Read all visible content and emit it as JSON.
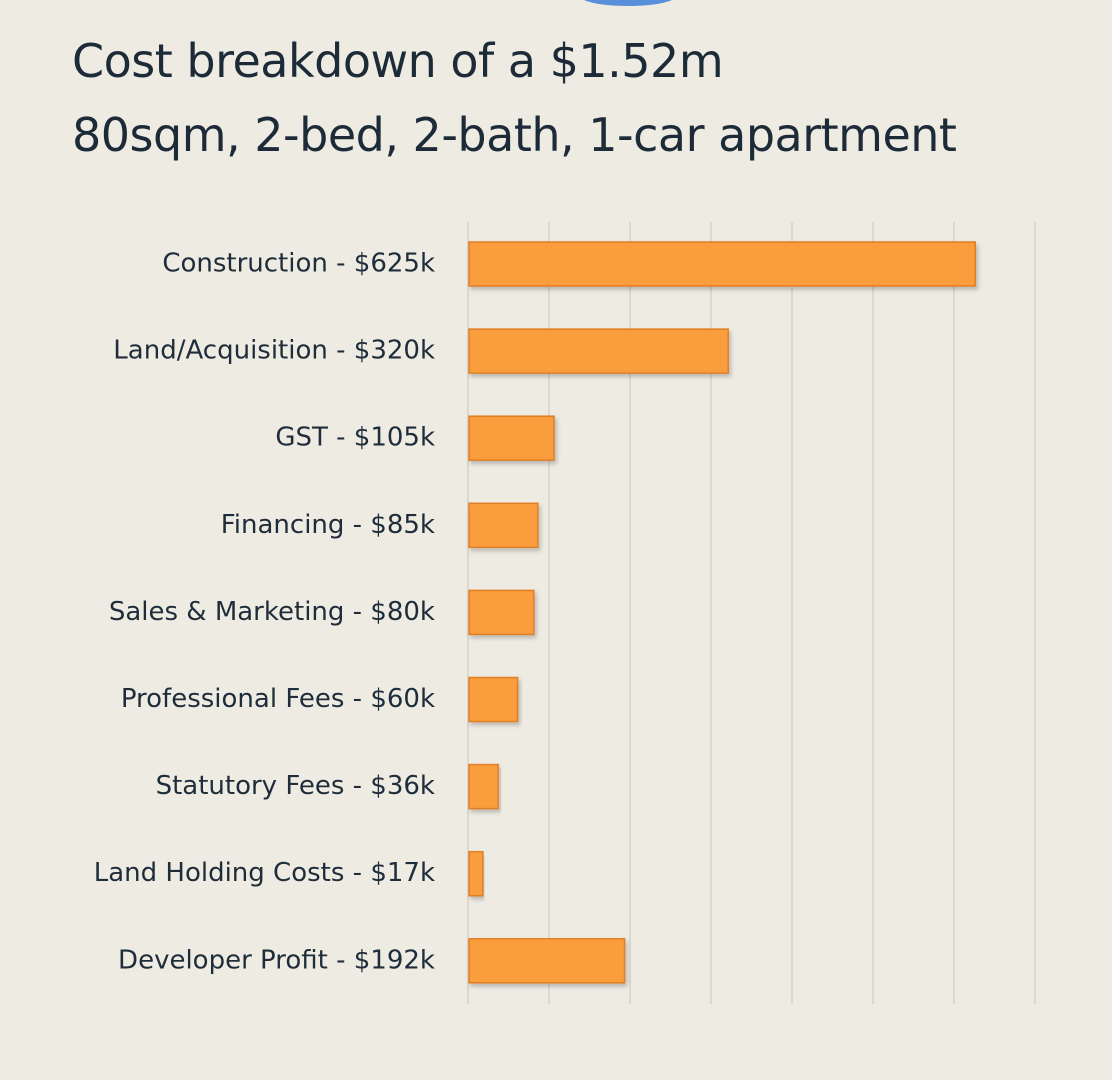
{
  "title_lines": [
    "Cost breakdown of a $1.52m",
    "80sqm, 2-bed, 2-bath, 1-car apartment"
  ],
  "colors": {
    "background": "#eeebe3",
    "bar": "#f99d3c",
    "bar_stroke": "#e07f25",
    "grid": "#dcd8d0",
    "text": "#1f2d3a",
    "decor_blob": "#3d7fd6"
  },
  "chart_data": {
    "type": "bar",
    "orientation": "horizontal",
    "title": "Cost breakdown of a $1.52m 80sqm, 2-bed, 2-bath, 1-car apartment",
    "categories": [
      "Construction - $625k",
      "Land/Acquisition - $320k",
      "GST - $105k",
      "Financing - $85k",
      "Sales & Marketing - $80k",
      "Professional Fees - $60k",
      "Statutory Fees - $36k",
      "Land Holding Costs - $17k",
      "Developer Profit - $192k"
    ],
    "values": [
      625,
      320,
      105,
      85,
      80,
      60,
      36,
      17,
      192
    ],
    "unit": "$k",
    "xlim": [
      0,
      700
    ],
    "x_gridlines": [
      0,
      100,
      200,
      300,
      400,
      500,
      600,
      700
    ],
    "x_tick_labels_visible": false,
    "grid": true,
    "legend": "none"
  }
}
